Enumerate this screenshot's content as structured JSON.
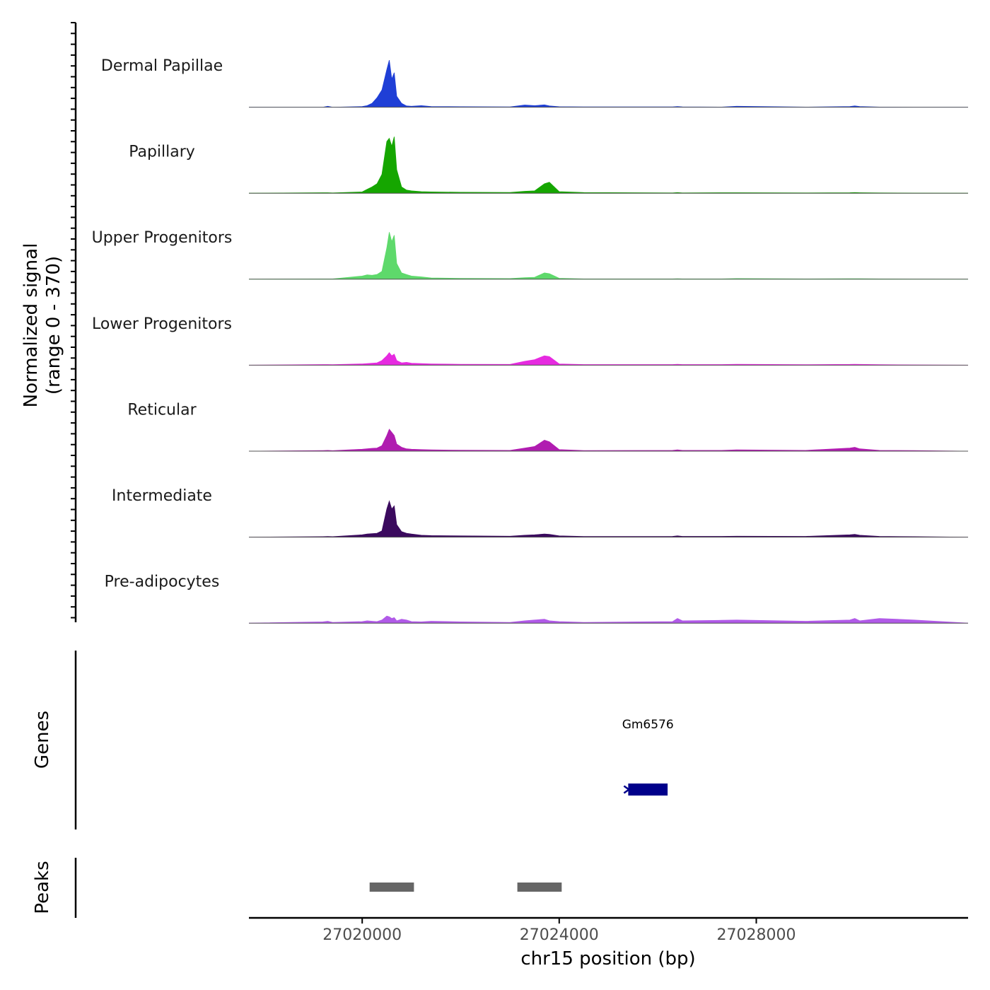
{
  "chart_data": {
    "type": "area",
    "ylabel_line1": "Normalized signal",
    "ylabel_line2": "(range 0 - 370)",
    "ylim": [
      0,
      370
    ],
    "xlabel": "chr15 position (bp)",
    "xlim": [
      27017700,
      27032300
    ],
    "xticks": [
      27020000,
      27024000,
      27028000
    ],
    "x": [
      27017700,
      27019200,
      27019300,
      27019400,
      27020000,
      27020100,
      27020200,
      27020300,
      27020400,
      27020500,
      27020550,
      27020600,
      27020650,
      27020700,
      27020800,
      27020900,
      27021000,
      27021200,
      27021400,
      27022000,
      27023000,
      27023300,
      27023500,
      27023700,
      27023800,
      27024000,
      27024500,
      27026300,
      27026400,
      27026500,
      27027300,
      27027600,
      27029000,
      27029900,
      27030000,
      27030100,
      27030500,
      27031200,
      27032300
    ],
    "series": [
      {
        "name": "Dermal Papillae",
        "color": "#1f3fd6",
        "values": [
          0,
          0,
          6,
          0,
          4,
          10,
          25,
          60,
          110,
          240,
          300,
          180,
          220,
          70,
          25,
          8,
          6,
          10,
          4,
          3,
          2,
          14,
          10,
          15,
          8,
          3,
          2,
          2,
          4,
          2,
          1,
          6,
          1,
          4,
          8,
          4,
          1,
          0,
          0
        ]
      },
      {
        "name": "Papillary",
        "color": "#15a600",
        "values": [
          0,
          3,
          3,
          2,
          8,
          25,
          40,
          60,
          120,
          330,
          350,
          300,
          360,
          150,
          40,
          20,
          15,
          10,
          8,
          6,
          5,
          12,
          15,
          60,
          70,
          10,
          4,
          2,
          4,
          2,
          3,
          3,
          2,
          3,
          4,
          3,
          2,
          1,
          0
        ]
      },
      {
        "name": "Upper Progenitors",
        "color": "#5ed96b",
        "values": [
          0,
          2,
          2,
          2,
          20,
          28,
          25,
          30,
          50,
          200,
          300,
          240,
          280,
          100,
          40,
          30,
          20,
          15,
          8,
          5,
          4,
          10,
          12,
          40,
          35,
          6,
          2,
          2,
          3,
          2,
          2,
          4,
          2,
          3,
          3,
          3,
          2,
          1,
          0
        ]
      },
      {
        "name": "Lower Progenitors",
        "color": "#e62ae0",
        "values": [
          0,
          4,
          4,
          3,
          8,
          10,
          12,
          15,
          30,
          60,
          80,
          60,
          70,
          30,
          15,
          18,
          12,
          10,
          8,
          6,
          5,
          25,
          35,
          60,
          55,
          8,
          4,
          4,
          6,
          4,
          4,
          6,
          3,
          5,
          6,
          5,
          3,
          2,
          0
        ]
      },
      {
        "name": "Reticular",
        "color": "#b01cb0",
        "values": [
          0,
          4,
          5,
          3,
          12,
          15,
          18,
          20,
          35,
          100,
          140,
          120,
          100,
          45,
          25,
          15,
          12,
          10,
          8,
          6,
          5,
          20,
          30,
          70,
          60,
          10,
          4,
          5,
          8,
          5,
          5,
          8,
          5,
          20,
          25,
          15,
          5,
          4,
          0
        ]
      },
      {
        "name": "Intermediate",
        "color": "#3b0a5e",
        "values": [
          0,
          3,
          4,
          3,
          15,
          20,
          22,
          25,
          40,
          180,
          230,
          180,
          200,
          80,
          35,
          25,
          20,
          12,
          10,
          8,
          6,
          12,
          15,
          20,
          18,
          8,
          4,
          5,
          8,
          5,
          5,
          6,
          5,
          15,
          18,
          12,
          5,
          3,
          0
        ]
      },
      {
        "name": "Pre-adipocytes",
        "color": "#b15ae8",
        "values": [
          0,
          8,
          12,
          5,
          10,
          15,
          12,
          10,
          20,
          45,
          40,
          30,
          35,
          15,
          25,
          20,
          10,
          8,
          12,
          8,
          5,
          15,
          20,
          25,
          15,
          10,
          5,
          10,
          30,
          15,
          18,
          20,
          12,
          20,
          30,
          15,
          30,
          20,
          0
        ]
      }
    ],
    "genes": [
      {
        "name": "Gm6576",
        "start": 27025400,
        "end": 27026200,
        "strand": "-"
      }
    ],
    "peaks": [
      {
        "start": 27020150,
        "end": 27021050
      },
      {
        "start": 27023150,
        "end": 27024050
      }
    ],
    "panels": {
      "genes_label": "Genes",
      "peaks_label": "Peaks"
    }
  }
}
